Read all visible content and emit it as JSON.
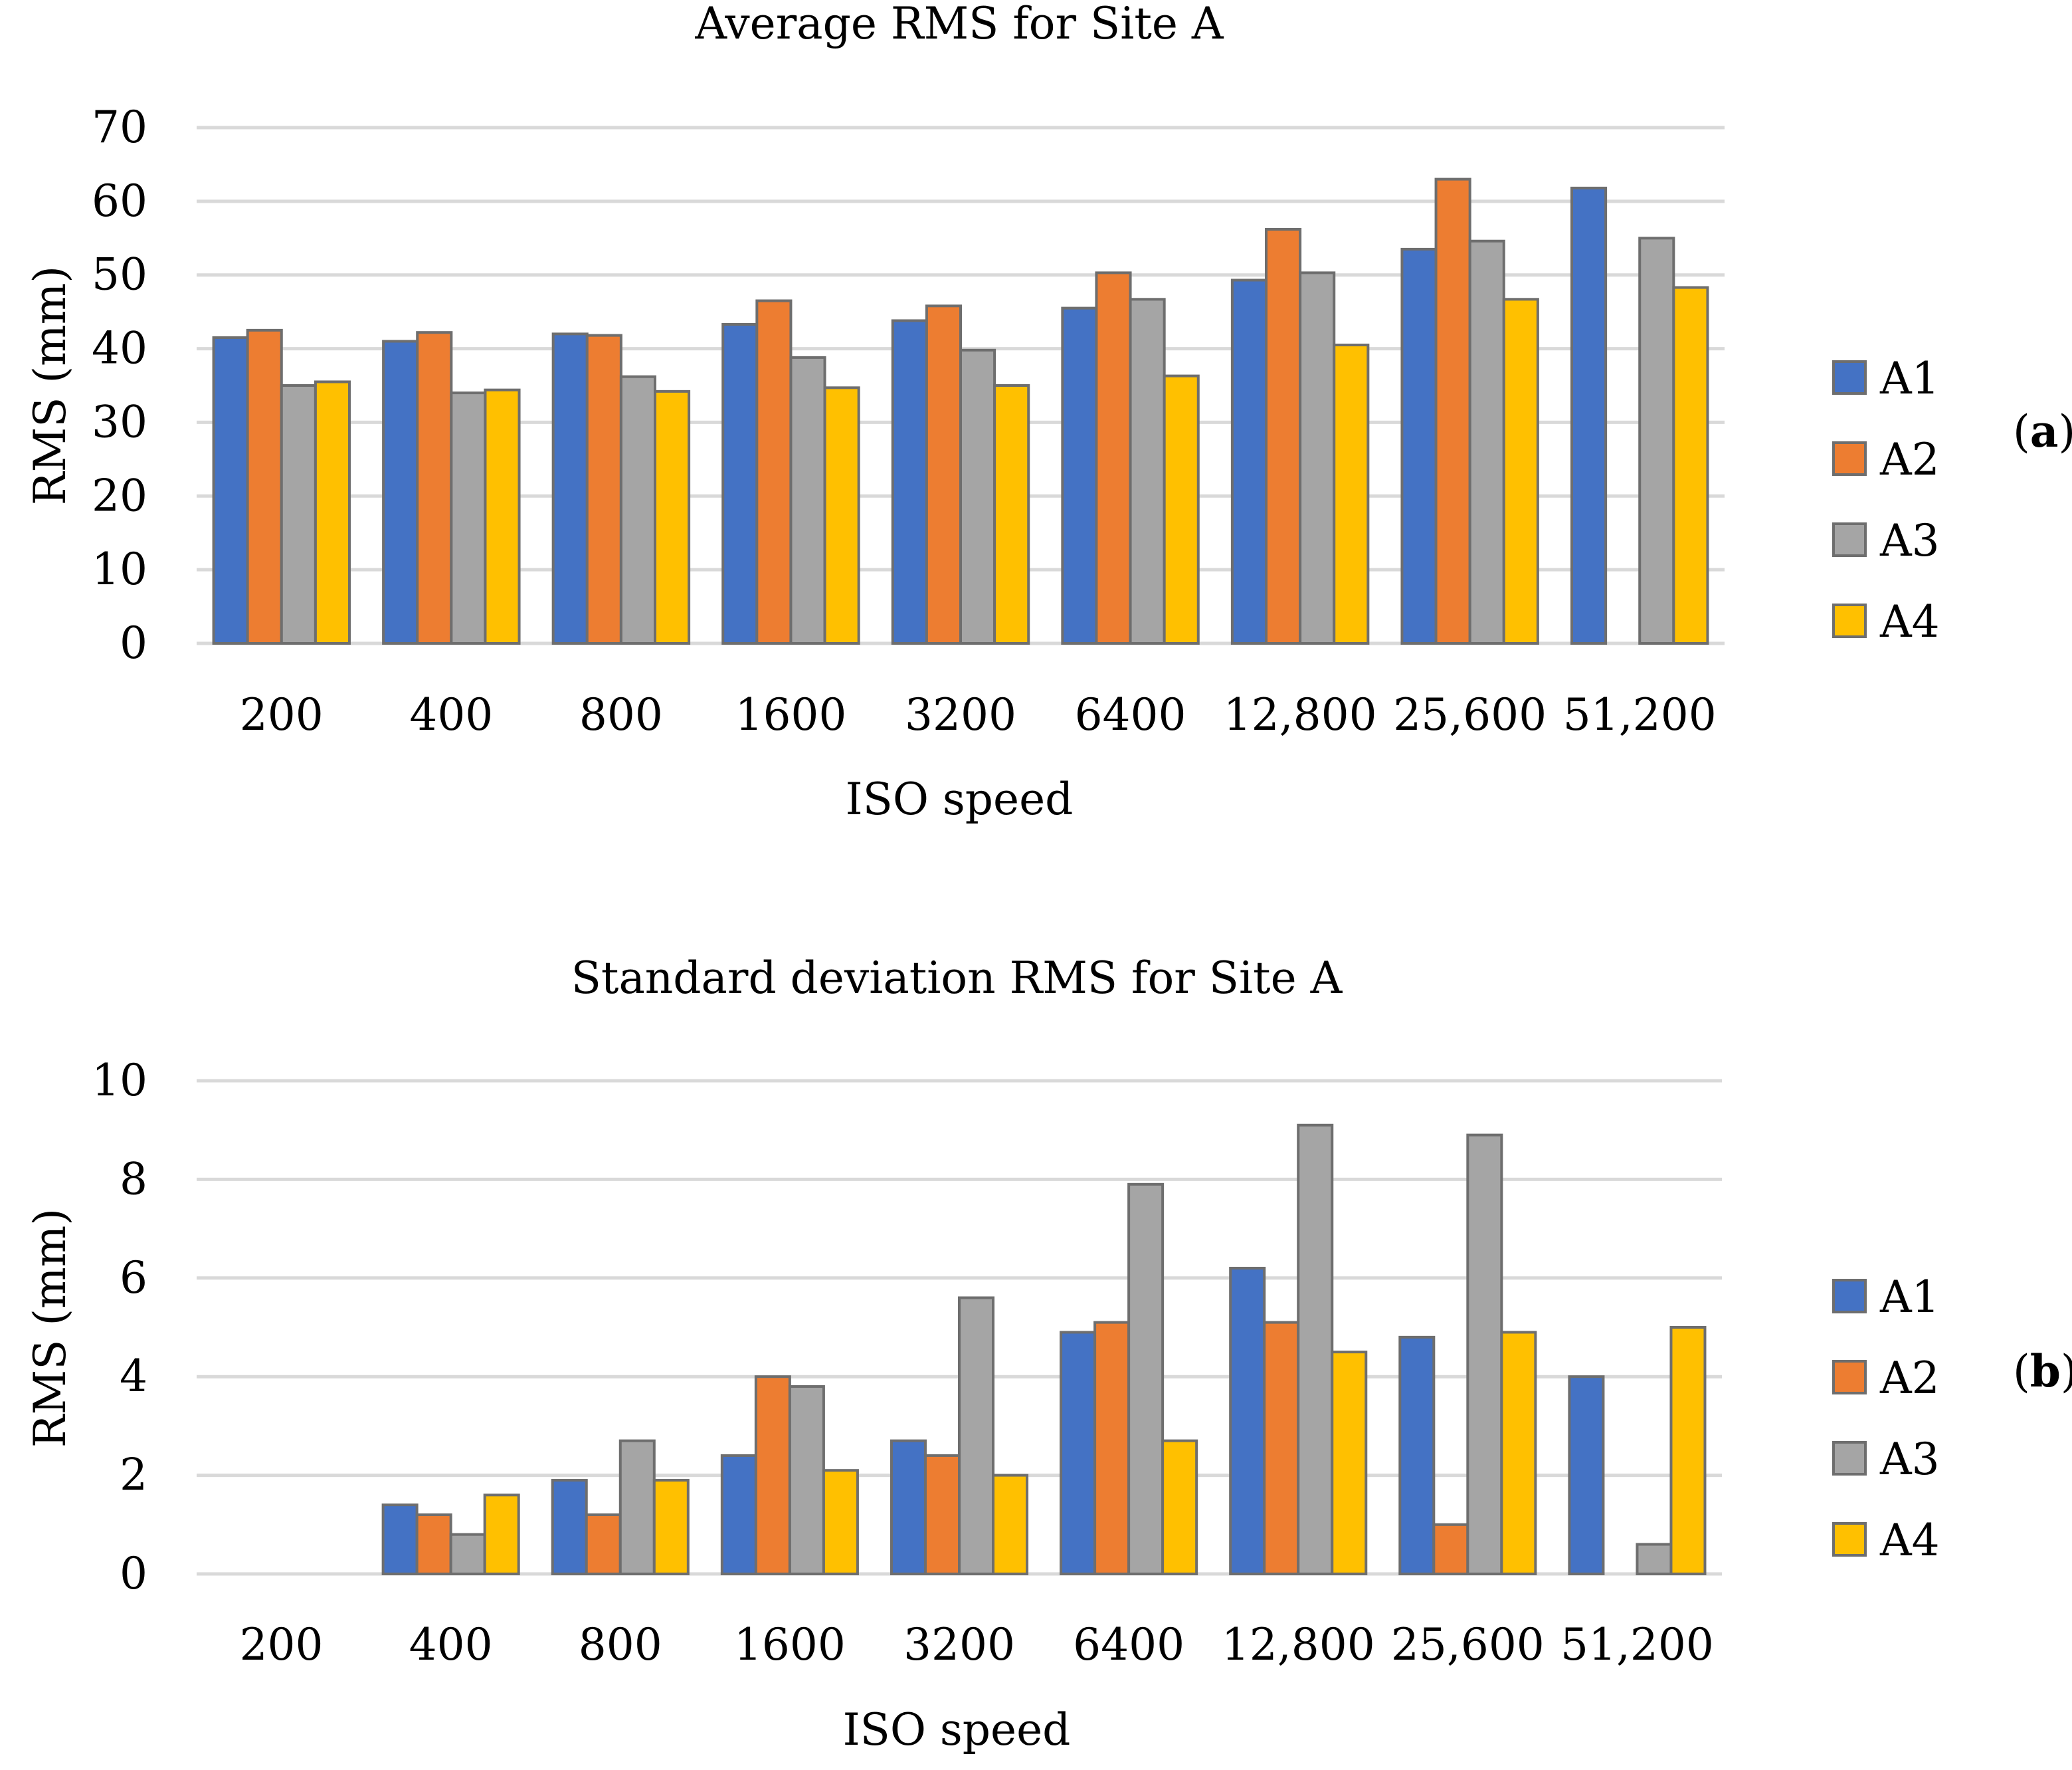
{
  "chart_data": [
    {
      "type": "bar",
      "title": "Average RMS for Site A",
      "xlabel": "ISO speed",
      "ylabel": "RMS (mm)",
      "ylim": [
        0,
        70
      ],
      "yticks": [
        "0",
        "10",
        "20",
        "30",
        "40",
        "50",
        "60",
        "70"
      ],
      "categories": [
        "200",
        "400",
        "800",
        "1600",
        "3200",
        "6400",
        "12,800",
        "25,600",
        "51,200"
      ],
      "series": [
        {
          "name": "A1",
          "color": "#4472c4",
          "values": [
            41.5,
            41,
            42,
            43.3,
            43.8,
            45.5,
            49.3,
            53.5,
            61.8
          ]
        },
        {
          "name": "A2",
          "color": "#ed7d31",
          "values": [
            42.5,
            42.2,
            41.8,
            46.5,
            45.8,
            50.3,
            56.2,
            63,
            null
          ]
        },
        {
          "name": "A3",
          "color": "#a5a5a5",
          "values": [
            35,
            34,
            36.2,
            38.8,
            39.8,
            46.7,
            50.3,
            54.6,
            55
          ]
        },
        {
          "name": "A4",
          "color": "#ffc000",
          "values": [
            35.5,
            34.4,
            34.2,
            34.7,
            35,
            36.3,
            40.5,
            46.7,
            48.3
          ]
        }
      ],
      "grid": true,
      "legend_position": "right",
      "panel_label": "a"
    },
    {
      "type": "bar",
      "title": "Standard deviation RMS for Site A",
      "xlabel": "ISO speed",
      "ylabel": "RMS (mm)",
      "ylim": [
        0,
        10
      ],
      "yticks": [
        "0",
        "2",
        "4",
        "6",
        "8",
        "10"
      ],
      "categories": [
        "200",
        "400",
        "800",
        "1600",
        "3200",
        "6400",
        "12,800",
        "25,600",
        "51,200"
      ],
      "series": [
        {
          "name": "A1",
          "color": "#4472c4",
          "values": [
            0,
            1.4,
            1.9,
            2.4,
            2.7,
            4.9,
            6.2,
            4.8,
            4.0
          ]
        },
        {
          "name": "A2",
          "color": "#ed7d31",
          "values": [
            0,
            1.2,
            1.2,
            4.0,
            2.4,
            5.1,
            5.1,
            1.0,
            null
          ]
        },
        {
          "name": "A3",
          "color": "#a5a5a5",
          "values": [
            0,
            0.8,
            2.7,
            3.8,
            5.6,
            7.9,
            9.1,
            8.9,
            0.6
          ]
        },
        {
          "name": "A4",
          "color": "#ffc000",
          "values": [
            0,
            1.6,
            1.9,
            2.1,
            2.0,
            2.7,
            4.5,
            4.9,
            5.0
          ]
        }
      ],
      "grid": true,
      "legend_position": "right",
      "panel_label": "b"
    }
  ]
}
